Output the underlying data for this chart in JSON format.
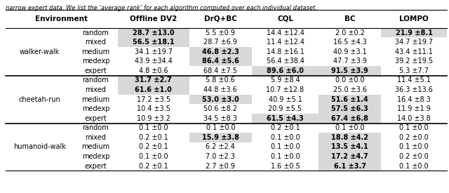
{
  "caption": "narrow expert data. We list the ‘average rank’ for each algorithm computed over each individual dataset.",
  "environments": [
    "walker-walk",
    "cheetah-run",
    "humanoid-walk"
  ],
  "datasets": [
    "random",
    "mixed",
    "medium",
    "medexp",
    "expert"
  ],
  "data": {
    "walker-walk": {
      "random": [
        [
          "28.7",
          "13.0",
          true
        ],
        [
          "5.5",
          "0.9",
          false
        ],
        [
          "14.4",
          "12.4",
          false
        ],
        [
          "2.0",
          "0.2",
          false
        ],
        [
          "21.9",
          "8.1",
          true
        ]
      ],
      "mixed": [
        [
          "56.5",
          "18.1",
          true
        ],
        [
          "28.7",
          "6.9",
          false
        ],
        [
          "11.4",
          "12.4",
          false
        ],
        [
          "16.5",
          "4.3",
          false
        ],
        [
          "34.7",
          "19.7",
          false
        ]
      ],
      "medium": [
        [
          "34.1",
          "19.7",
          false
        ],
        [
          "46.8",
          "2.3",
          true
        ],
        [
          "14.8",
          "16.1",
          false
        ],
        [
          "40.9",
          "3.1",
          false
        ],
        [
          "43.4",
          "11.1",
          false
        ]
      ],
      "medexp": [
        [
          "43.9",
          "34.4",
          false
        ],
        [
          "86.4",
          "5.6",
          true
        ],
        [
          "56.4",
          "38.4",
          false
        ],
        [
          "47.7",
          "3.9",
          false
        ],
        [
          "39.2",
          "19.5",
          false
        ]
      ],
      "expert": [
        [
          "4.8",
          "0.6",
          false
        ],
        [
          "68.4",
          "7.5",
          false
        ],
        [
          "89.6",
          "6.0",
          true
        ],
        [
          "91.5",
          "3.9",
          true
        ],
        [
          "5.3",
          "7.7",
          false
        ]
      ]
    },
    "cheetah-run": {
      "random": [
        [
          "31.7",
          "2.7",
          true
        ],
        [
          "5.8",
          "0.6",
          false
        ],
        [
          "5.9",
          "8.4",
          false
        ],
        [
          "0.0",
          "0.0",
          false
        ],
        [
          "11.4",
          "5.1",
          false
        ]
      ],
      "mixed": [
        [
          "61.6",
          "1.0",
          true
        ],
        [
          "44.8",
          "3.6",
          false
        ],
        [
          "10.7",
          "12.8",
          false
        ],
        [
          "25.0",
          "3.6",
          false
        ],
        [
          "36.3",
          "13.6",
          false
        ]
      ],
      "medium": [
        [
          "17.2",
          "3.5",
          false
        ],
        [
          "53.0",
          "3.0",
          true
        ],
        [
          "40.9",
          "5.1",
          false
        ],
        [
          "51.6",
          "1.4",
          true
        ],
        [
          "16.4",
          "8.3",
          false
        ]
      ],
      "medexp": [
        [
          "10.4",
          "3.5",
          false
        ],
        [
          "50.6",
          "8.2",
          false
        ],
        [
          "20.9",
          "5.5",
          false
        ],
        [
          "57.5",
          "6.3",
          true
        ],
        [
          "11.9",
          "1.9",
          false
        ]
      ],
      "expert": [
        [
          "10.9",
          "3.2",
          false
        ],
        [
          "34.5",
          "8.3",
          false
        ],
        [
          "61.5",
          "4.3",
          true
        ],
        [
          "67.4",
          "6.8",
          true
        ],
        [
          "14.0",
          "3.8",
          false
        ]
      ]
    },
    "humanoid-walk": {
      "random": [
        [
          "0.1",
          "0.0",
          false
        ],
        [
          "0.1",
          "0.0",
          false
        ],
        [
          "0.2",
          "0.1",
          false
        ],
        [
          "0.1",
          "0.0",
          false
        ],
        [
          "0.1",
          "0.0",
          false
        ]
      ],
      "mixed": [
        [
          "0.2",
          "0.1",
          false
        ],
        [
          "15.9",
          "3.8",
          true
        ],
        [
          "0.1",
          "0.0",
          false
        ],
        [
          "18.8",
          "4.2",
          true
        ],
        [
          "0.2",
          "0.0",
          false
        ]
      ],
      "medium": [
        [
          "0.2",
          "0.1",
          false
        ],
        [
          "6.2",
          "2.4",
          false
        ],
        [
          "0.1",
          "0.0",
          false
        ],
        [
          "13.5",
          "4.1",
          true
        ],
        [
          "0.1",
          "0.0",
          false
        ]
      ],
      "medexp": [
        [
          "0.1",
          "0.0",
          false
        ],
        [
          "7.0",
          "2.3",
          false
        ],
        [
          "0.1",
          "0.0",
          false
        ],
        [
          "17.2",
          "4.7",
          true
        ],
        [
          "0.2",
          "0.0",
          false
        ]
      ],
      "expert": [
        [
          "0.2",
          "0.1",
          false
        ],
        [
          "2.7",
          "0.9",
          false
        ],
        [
          "1.6",
          "0.5",
          false
        ],
        [
          "6.1",
          "3.7",
          true
        ],
        [
          "0.1",
          "0.0",
          false
        ]
      ]
    }
  },
  "highlight_color": "#d8d8d8",
  "bg_color": "#ffffff",
  "col_headers": [
    "Environment",
    "Offline DV2",
    "DrQ+BC",
    "CQL",
    "BC",
    "LOMPO"
  ],
  "font_size": 7.0,
  "header_font_size": 7.5
}
